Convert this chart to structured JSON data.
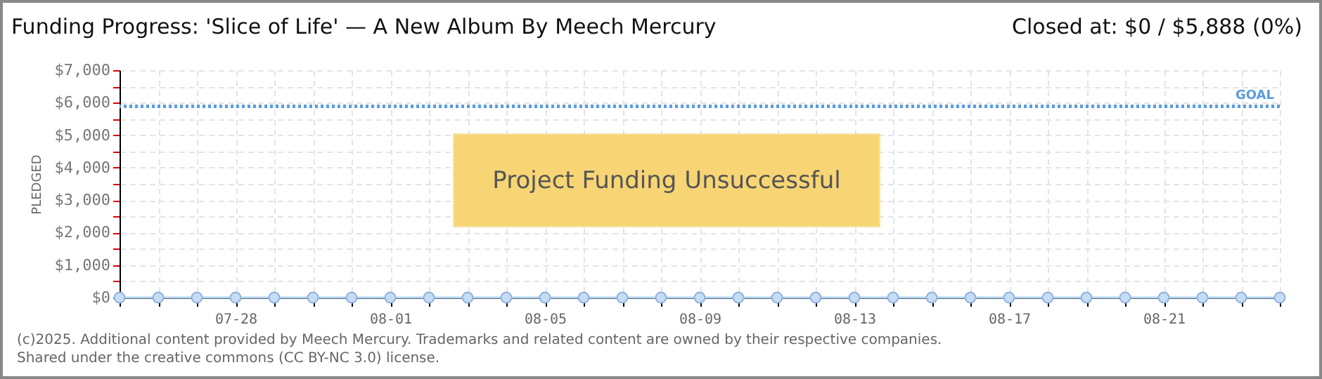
{
  "chart_data": {
    "type": "line",
    "title": "Funding Progress: 'Slice of Life' — A New Album By Meech Mercury",
    "ylabel": "PLEDGED",
    "x": [
      "--07-25",
      "--07-26",
      "--07-27",
      "--07-28",
      "--07-29",
      "--07-30",
      "--07-31",
      "--08-01",
      "--08-02",
      "--08-03",
      "--08-04",
      "--08-05",
      "--08-06",
      "--08-07",
      "--08-08",
      "--08-09",
      "--08-10",
      "--08-11",
      "--08-12",
      "--08-13",
      "--08-14",
      "--08-15",
      "--08-16",
      "--08-17",
      "--08-18",
      "--08-19",
      "--08-20",
      "--08-21",
      "--08-22",
      "--08-23",
      "--08-24"
    ],
    "series": [
      {
        "color": "#b3d3f5",
        "values": [
          0,
          0,
          0,
          0,
          0,
          0,
          0,
          0,
          0,
          0,
          0,
          0,
          0,
          0,
          0,
          0,
          0,
          0,
          0,
          0,
          0,
          0,
          0,
          0,
          0,
          0,
          0,
          0,
          0,
          0,
          0
        ]
      }
    ],
    "marker": "circle",
    "grid": true,
    "legend": false,
    "xlim": [
      "--07-25",
      "--08-24"
    ],
    "xticks": [
      {
        "value": "--07-25",
        "label": null
      },
      {
        "value": "--07-26",
        "label": null
      },
      {
        "value": "--07-27",
        "label": null
      },
      {
        "value": "--07-28",
        "label": "07-28"
      },
      {
        "value": "--07-29",
        "label": null
      },
      {
        "value": "--07-30",
        "label": null
      },
      {
        "value": "--07-31",
        "label": null
      },
      {
        "value": "--08-01",
        "label": "08-01"
      },
      {
        "value": "--08-02",
        "label": null
      },
      {
        "value": "--08-03",
        "label": null
      },
      {
        "value": "--08-04",
        "label": null
      },
      {
        "value": "--08-05",
        "label": "08-05"
      },
      {
        "value": "--08-06",
        "label": null
      },
      {
        "value": "--08-07",
        "label": null
      },
      {
        "value": "--08-08",
        "label": null
      },
      {
        "value": "--08-09",
        "label": "08-09"
      },
      {
        "value": "--08-10",
        "label": null
      },
      {
        "value": "--08-11",
        "label": null
      },
      {
        "value": "--08-12",
        "label": null
      },
      {
        "value": "--08-13",
        "label": "08-13"
      },
      {
        "value": "--08-14",
        "label": null
      },
      {
        "value": "--08-15",
        "label": null
      },
      {
        "value": "--08-16",
        "label": null
      },
      {
        "value": "--08-17",
        "label": "08-17"
      },
      {
        "value": "--08-18",
        "label": null
      },
      {
        "value": "--08-19",
        "label": null
      },
      {
        "value": "--08-20",
        "label": null
      },
      {
        "value": "--08-21",
        "label": "08-21"
      },
      {
        "value": "--08-22",
        "label": null
      },
      {
        "value": "--08-23",
        "label": null
      },
      {
        "value": "--08-24",
        "label": null
      }
    ],
    "ylim": [
      0,
      7000
    ],
    "yticks": [
      {
        "value": 0,
        "label": "$0"
      },
      {
        "value": 500,
        "label": null
      },
      {
        "value": 1000,
        "label": "$1,000"
      },
      {
        "value": 1500,
        "label": null
      },
      {
        "value": 2000,
        "label": "$2,000"
      },
      {
        "value": 2500,
        "label": null
      },
      {
        "value": 3000,
        "label": "$3,000"
      },
      {
        "value": 3500,
        "label": null
      },
      {
        "value": 4000,
        "label": "$4,000"
      },
      {
        "value": 4500,
        "label": null
      },
      {
        "value": 5000,
        "label": "$5,000"
      },
      {
        "value": 5500,
        "label": null
      },
      {
        "value": 6000,
        "label": "$6,000"
      },
      {
        "value": 6500,
        "label": null
      },
      {
        "value": 7000,
        "label": "$7,000"
      }
    ],
    "ref_lines": [
      {
        "axis": "y",
        "value": 5888,
        "label": "GOAL",
        "color": "#5b9bdf",
        "line_style": "dotted"
      }
    ],
    "annotations": [
      "Closed at: $0 / $5,888 (0%)",
      "Project Funding Unsuccessful",
      "(c)2025. Additional content provided by Meech Mercury. Trademarks and related content are owned by their respective companies.",
      "Shared under the creative commons (CC BY-NC 3.0) license."
    ]
  }
}
